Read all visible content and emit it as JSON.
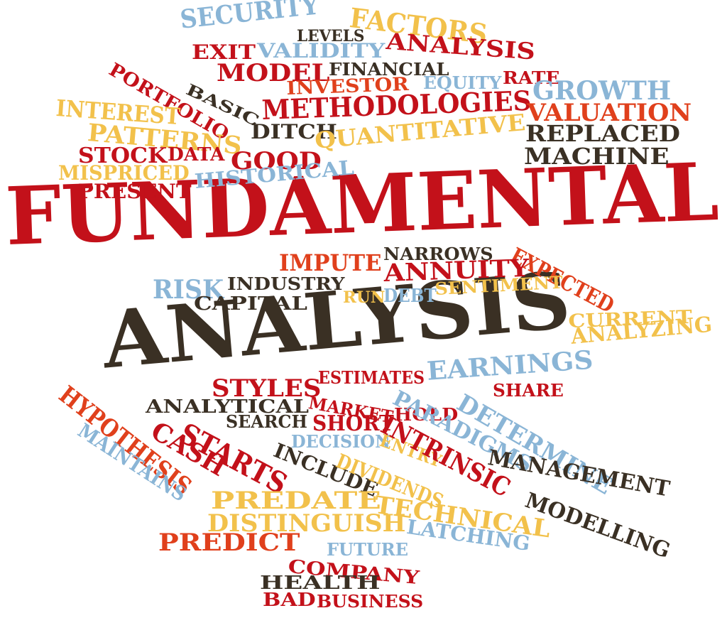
{
  "colors": {
    "red": "#c3111a",
    "orange_red": "#e0401c",
    "dark": "#3a3024",
    "blue": "#8ab5d6",
    "yellow": "#f2c14b"
  },
  "words": [
    {
      "id": "fundamental",
      "text": "FUNDAMENTAL",
      "color": "red"
    },
    {
      "id": "analysis-main",
      "text": "ANALYSIS",
      "color": "dark"
    },
    {
      "id": "security",
      "text": "SECURITY",
      "color": "blue"
    },
    {
      "id": "factors",
      "text": "FACTORS",
      "color": "yellow"
    },
    {
      "id": "levels",
      "text": "LEVELS",
      "color": "dark"
    },
    {
      "id": "exit",
      "text": "EXIT",
      "color": "red"
    },
    {
      "id": "validity",
      "text": "VALIDITY",
      "color": "blue"
    },
    {
      "id": "analysis-small",
      "text": "ANALYSIS",
      "color": "red"
    },
    {
      "id": "portfolio",
      "text": "PORTFOLIO",
      "color": "red"
    },
    {
      "id": "model",
      "text": "MODEL",
      "color": "red"
    },
    {
      "id": "financial",
      "text": "FINANCIAL",
      "color": "dark"
    },
    {
      "id": "equity",
      "text": "EQUITY",
      "color": "blue"
    },
    {
      "id": "rate",
      "text": "RATE",
      "color": "red"
    },
    {
      "id": "basic",
      "text": "BASIC",
      "color": "dark"
    },
    {
      "id": "investor",
      "text": "INVESTOR",
      "color": "orange_red"
    },
    {
      "id": "growth",
      "text": "GROWTH",
      "color": "blue"
    },
    {
      "id": "interest",
      "text": "INTEREST",
      "color": "yellow"
    },
    {
      "id": "methodologies",
      "text": "METHODOLOGIES",
      "color": "red"
    },
    {
      "id": "valuation",
      "text": "VALUATION",
      "color": "orange_red"
    },
    {
      "id": "patterns",
      "text": "PATTERNS",
      "color": "yellow"
    },
    {
      "id": "ditch",
      "text": "DITCH",
      "color": "dark"
    },
    {
      "id": "replaced",
      "text": "REPLACED",
      "color": "dark"
    },
    {
      "id": "stock",
      "text": "STOCK",
      "color": "red"
    },
    {
      "id": "data",
      "text": "DATA",
      "color": "red"
    },
    {
      "id": "good",
      "text": "GOOD",
      "color": "red"
    },
    {
      "id": "quantitative",
      "text": "QUANTITATIVE",
      "color": "yellow"
    },
    {
      "id": "machine",
      "text": "MACHINE",
      "color": "dark"
    },
    {
      "id": "mispriced",
      "text": "MISPRICED",
      "color": "yellow"
    },
    {
      "id": "present",
      "text": "PRESENT",
      "color": "red"
    },
    {
      "id": "historical",
      "text": "HISTORICAL",
      "color": "blue"
    },
    {
      "id": "narrows",
      "text": "NARROWS",
      "color": "dark"
    },
    {
      "id": "impute",
      "text": "IMPUTE",
      "color": "orange_red"
    },
    {
      "id": "expected",
      "text": "EXPECTED",
      "color": "orange_red"
    },
    {
      "id": "annuity",
      "text": "ANNUITY",
      "color": "red"
    },
    {
      "id": "risk",
      "text": "RISK",
      "color": "blue"
    },
    {
      "id": "industry",
      "text": "INDUSTRY",
      "color": "dark"
    },
    {
      "id": "capital",
      "text": "CAPITAL",
      "color": "dark"
    },
    {
      "id": "run",
      "text": "RUN",
      "color": "yellow"
    },
    {
      "id": "debt",
      "text": "DEBT",
      "color": "blue"
    },
    {
      "id": "sentiment",
      "text": "SENTIMENT",
      "color": "yellow"
    },
    {
      "id": "current",
      "text": "CURRENT",
      "color": "yellow"
    },
    {
      "id": "analyzing",
      "text": "ANALYZING",
      "color": "yellow"
    },
    {
      "id": "styles",
      "text": "STYLES",
      "color": "red"
    },
    {
      "id": "estimates",
      "text": "ESTIMATES",
      "color": "red"
    },
    {
      "id": "earnings",
      "text": "EARNINGS",
      "color": "blue"
    },
    {
      "id": "share",
      "text": "SHARE",
      "color": "red"
    },
    {
      "id": "hypothesis",
      "text": "HYPOTHESIS",
      "color": "orange_red"
    },
    {
      "id": "analytical",
      "text": "ANALYTICAL",
      "color": "dark"
    },
    {
      "id": "market",
      "text": "MARKET",
      "color": "red"
    },
    {
      "id": "hold",
      "text": "HOLD",
      "color": "red"
    },
    {
      "id": "determine",
      "text": "DETERMINE",
      "color": "blue"
    },
    {
      "id": "paradigms",
      "text": "PARADIGMS",
      "color": "blue"
    },
    {
      "id": "maintains",
      "text": "MAINTAINS",
      "color": "blue"
    },
    {
      "id": "cash",
      "text": "CASH",
      "color": "red"
    },
    {
      "id": "starts",
      "text": "STARTS",
      "color": "red"
    },
    {
      "id": "search",
      "text": "SEARCH",
      "color": "dark"
    },
    {
      "id": "short",
      "text": "SHORT",
      "color": "red"
    },
    {
      "id": "decision",
      "text": "DECISION",
      "color": "blue"
    },
    {
      "id": "entry",
      "text": "ENTRY",
      "color": "yellow"
    },
    {
      "id": "intrinsic",
      "text": "INTRINSIC",
      "color": "red"
    },
    {
      "id": "include",
      "text": "INCLUDE",
      "color": "dark"
    },
    {
      "id": "dividends",
      "text": "DIVIDENDS",
      "color": "yellow"
    },
    {
      "id": "management",
      "text": "MANAGEMENT",
      "color": "dark"
    },
    {
      "id": "predate",
      "text": "PREDATE",
      "color": "yellow"
    },
    {
      "id": "technical",
      "text": "TECHNICAL",
      "color": "yellow"
    },
    {
      "id": "modelling",
      "text": "MODELLING",
      "color": "dark"
    },
    {
      "id": "distinguish",
      "text": "DISTINGUISH",
      "color": "yellow"
    },
    {
      "id": "latching",
      "text": "LATCHING",
      "color": "blue"
    },
    {
      "id": "predict",
      "text": "PREDICT",
      "color": "orange_red"
    },
    {
      "id": "future",
      "text": "FUTURE",
      "color": "blue"
    },
    {
      "id": "company",
      "text": "COMPANY",
      "color": "red"
    },
    {
      "id": "health",
      "text": "HEALTH",
      "color": "dark"
    },
    {
      "id": "bad",
      "text": "BAD",
      "color": "red"
    },
    {
      "id": "business",
      "text": "BUSINESS",
      "color": "red"
    }
  ]
}
